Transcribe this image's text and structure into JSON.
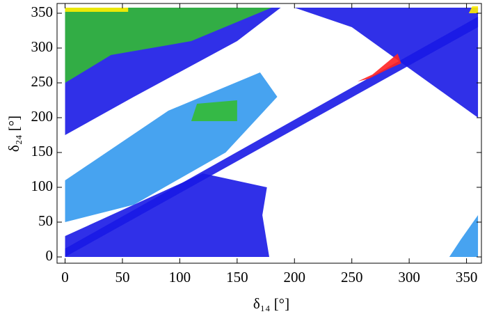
{
  "chart_data": {
    "type": "area-scatter",
    "xlabel": "δ₁₄ [°]",
    "ylabel": "δ₂₄ [°]",
    "xlim": [
      -7,
      363
    ],
    "ylim": [
      -9,
      364
    ],
    "xticks": [
      0,
      50,
      100,
      150,
      200,
      250,
      300,
      350
    ],
    "yticks": [
      0,
      50,
      100,
      150,
      200,
      250,
      300,
      350
    ],
    "series": [
      {
        "color": "#1a1ae6",
        "x": [
          0,
          0,
          188,
          150,
          60
        ],
        "y": [
          175,
          358,
          358,
          310,
          230
        ]
      },
      {
        "color": "#1a1ae6",
        "x": [
          0,
          178,
          172,
          176,
          120,
          0
        ],
        "y": [
          0,
          0,
          60,
          100,
          120,
          30
        ]
      },
      {
        "color": "#1a1ae6",
        "x": [
          0,
          360,
          360,
          0
        ],
        "y": [
          0,
          330,
          345,
          12
        ]
      },
      {
        "color": "#1a1ae6",
        "x": [
          200,
          360,
          360,
          250
        ],
        "y": [
          358,
          358,
          200,
          330
        ]
      },
      {
        "color": "#3399ee",
        "x": [
          0,
          0,
          90,
          170,
          185,
          140,
          60
        ],
        "y": [
          50,
          110,
          210,
          265,
          230,
          150,
          75
        ]
      },
      {
        "color": "#3399ee",
        "x": [
          335,
          360,
          360,
          345
        ],
        "y": [
          0,
          0,
          60,
          25
        ]
      },
      {
        "color": "#33bb33",
        "x": [
          0,
          0,
          180,
          110,
          40
        ],
        "y": [
          250,
          358,
          358,
          310,
          290
        ]
      },
      {
        "color": "#33bb33",
        "x": [
          110,
          150,
          150,
          115
        ],
        "y": [
          195,
          195,
          225,
          220
        ]
      },
      {
        "color": "#ffee00",
        "x": [
          0,
          55,
          55,
          0
        ],
        "y": [
          352,
          352,
          358,
          358
        ]
      },
      {
        "color": "#ffee00",
        "x": [
          352,
          360,
          360,
          355
        ],
        "y": [
          350,
          350,
          360,
          360
        ]
      },
      {
        "color": "#ff2222",
        "x": [
          255,
          268,
          290,
          293,
          282,
          265
        ],
        "y": [
          252,
          262,
          292,
          278,
          270,
          256
        ]
      }
    ]
  }
}
